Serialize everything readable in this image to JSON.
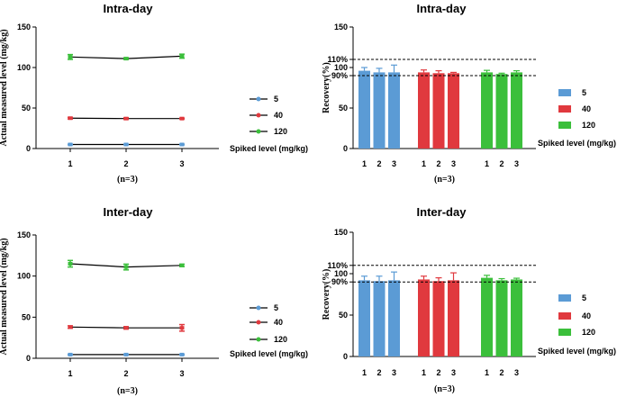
{
  "colors": {
    "s5": "#5b9bd5",
    "s40": "#e0393e",
    "s120": "#3bbf3b",
    "axis": "#000000"
  },
  "chart_data": [
    {
      "id": "intra-line",
      "type": "line",
      "title": "Intra-day",
      "ylabel": "Actual measured level (mg/kg)",
      "xlabel": "(n=3)",
      "legend_title": "Spiked level (mg/kg)",
      "ylim": [
        0,
        150
      ],
      "yticks": [
        0,
        50,
        100,
        150
      ],
      "x": [
        1,
        2,
        3
      ],
      "series": [
        {
          "name": "5",
          "values": [
            5,
            5,
            5
          ],
          "errors": [
            0.3,
            0.3,
            0.3
          ]
        },
        {
          "name": "40",
          "values": [
            37.5,
            37,
            37
          ],
          "errors": [
            1,
            1,
            0.5
          ]
        },
        {
          "name": "120",
          "values": [
            113,
            111,
            114
          ],
          "errors": [
            3,
            1,
            2.5
          ]
        }
      ]
    },
    {
      "id": "intra-bar",
      "type": "bar",
      "title": "Intra-day",
      "ylabel": "Recovery(%)",
      "xlabel": "(n=3)",
      "legend_title": "Spiked level (mg/kg)",
      "ylim": [
        0,
        150
      ],
      "yticks": [
        0,
        50,
        90,
        100,
        110,
        150
      ],
      "ytick_labels": [
        "0",
        "50",
        "90%",
        "100",
        "110%",
        "150"
      ],
      "ref_lines": [
        110,
        90
      ],
      "categories": [
        "1",
        "2",
        "3"
      ],
      "series": [
        {
          "name": "5",
          "values": [
            96,
            94,
            94
          ],
          "errors": [
            4,
            5,
            9
          ]
        },
        {
          "name": "40",
          "values": [
            94,
            93,
            93
          ],
          "errors": [
            3,
            3,
            1
          ]
        },
        {
          "name": "120",
          "values": [
            94,
            92,
            94
          ],
          "errors": [
            2.5,
            1,
            2
          ]
        }
      ]
    },
    {
      "id": "inter-line",
      "type": "line",
      "title": "Inter-day",
      "ylabel": "Actual measured level (mg/kg)",
      "xlabel": "(n=3)",
      "legend_title": "Spiked level (mg/kg)",
      "ylim": [
        0,
        150
      ],
      "yticks": [
        0,
        50,
        100,
        150
      ],
      "x": [
        1,
        2,
        3
      ],
      "series": [
        {
          "name": "5",
          "values": [
            4.5,
            4.5,
            4.5
          ],
          "errors": [
            0.3,
            0.3,
            0.3
          ]
        },
        {
          "name": "40",
          "values": [
            38,
            37,
            37
          ],
          "errors": [
            1.5,
            1.5,
            4
          ]
        },
        {
          "name": "120",
          "values": [
            115,
            111,
            113
          ],
          "errors": [
            4,
            3.5,
            1.5
          ]
        }
      ]
    },
    {
      "id": "inter-bar",
      "type": "bar",
      "title": "Inter-day",
      "ylabel": "Recovery(%)",
      "xlabel": "(n=3)",
      "legend_title": "Spiked level (mg/kg)",
      "ylim": [
        0,
        150
      ],
      "yticks": [
        0,
        50,
        90,
        100,
        110,
        150
      ],
      "ytick_labels": [
        "0",
        "50",
        "90%",
        "100",
        "110%",
        "150"
      ],
      "ref_lines": [
        110,
        90
      ],
      "categories": [
        "1",
        "2",
        "3"
      ],
      "series": [
        {
          "name": "5",
          "values": [
            92,
            91,
            92
          ],
          "errors": [
            5,
            6,
            10
          ]
        },
        {
          "name": "40",
          "values": [
            93,
            91,
            92
          ],
          "errors": [
            4,
            4,
            9
          ]
        },
        {
          "name": "120",
          "values": [
            95,
            92,
            93
          ],
          "errors": [
            3,
            2,
            1.5
          ]
        }
      ]
    }
  ]
}
